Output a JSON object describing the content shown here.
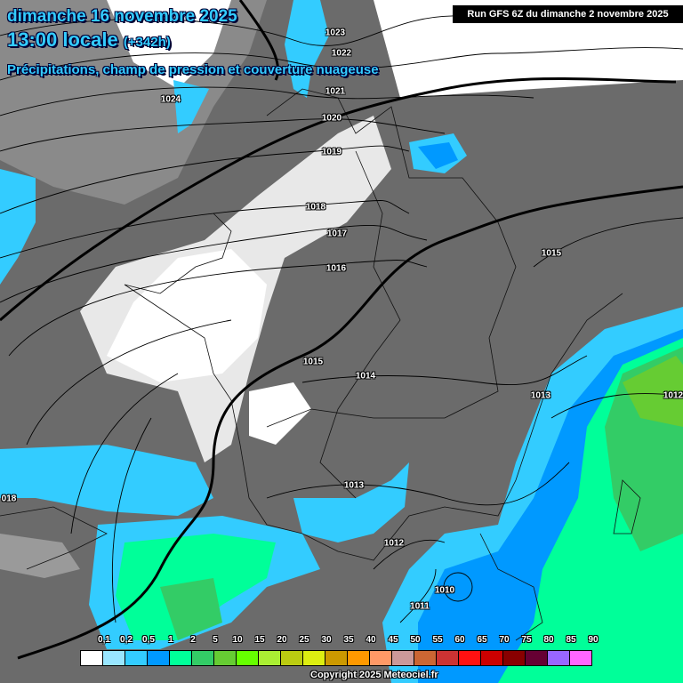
{
  "header": {
    "date": "dimanche 16 novembre 2025",
    "time": "13:00 locale",
    "lead": "(+342h)",
    "subtitle": "Précipitations, champ de pression et couverture nuageuse",
    "run": "Run GFS 6Z du dimanche 2 novembre 2025"
  },
  "isobar_labels": [
    "1023",
    "1022",
    "1021",
    "1020",
    "1019",
    "1018",
    "1017",
    "1016",
    "1015",
    "1014",
    "1013",
    "1012",
    "1011",
    "1010",
    "1024",
    "1015",
    "1013",
    "1012",
    "018"
  ],
  "legend": {
    "unit_labels": [
      "0,1",
      "0,2",
      "0,5",
      "1",
      "2",
      "5",
      "10",
      "15",
      "20",
      "25",
      "30",
      "35",
      "40",
      "45",
      "50",
      "55",
      "60",
      "65",
      "70",
      "75",
      "80",
      "85",
      "90"
    ],
    "colors": [
      "#ffffff",
      "#99e6ff",
      "#33ccff",
      "#0099ff",
      "#00ff99",
      "#33cc66",
      "#66cc33",
      "#66ff00",
      "#aaee33",
      "#bbcc11",
      "#ddee11",
      "#cc9900",
      "#ff9900",
      "#ff9966",
      "#cc9999",
      "#cc6633",
      "#cc3333",
      "#ff1111",
      "#cc0000",
      "#880000",
      "#660033",
      "#9966ff",
      "#ff66ff"
    ]
  },
  "map_colors": {
    "cloud": "#6b6b6b",
    "clear": "#ffffff",
    "precip_light": "#33ccff",
    "precip_mod": "#0099ff",
    "precip_green": "#00ff99",
    "precip_heavy": "#33cc66",
    "precip_strong": "#66cc33"
  },
  "copyright": "Copyright 2025 Meteociel.fr"
}
